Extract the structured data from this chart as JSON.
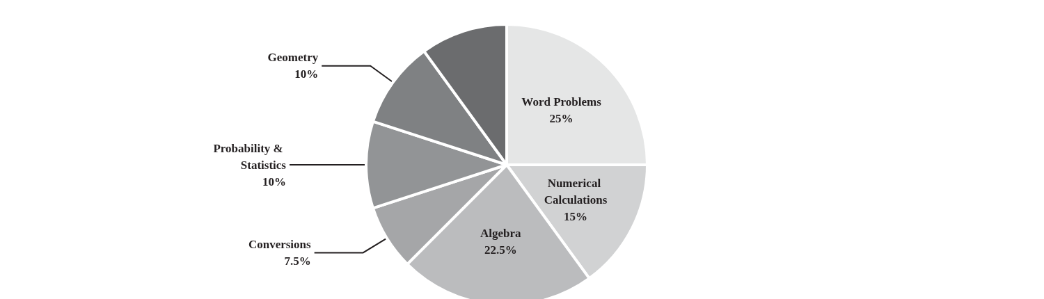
{
  "chart_data": {
    "type": "pie",
    "categories": [
      "Word Problems",
      "Numerical Calculations",
      "Algebra",
      "Conversions",
      "Probability & Statistics",
      "Geometry",
      null
    ],
    "values": [
      25,
      15,
      22.5,
      7.5,
      10,
      10,
      10
    ],
    "colors": [
      "#e5e6e6",
      "#d1d2d3",
      "#bbbcbe",
      "#a5a6a8",
      "#929496",
      "#7f8183",
      "#6b6c6e"
    ],
    "value_labels": [
      "25%",
      "15%",
      "22.5%",
      "7.5%",
      "10%",
      "10%",
      null
    ]
  }
}
